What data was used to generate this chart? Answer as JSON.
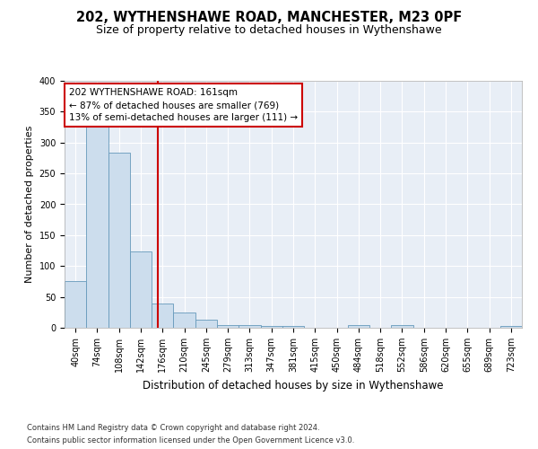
{
  "title": "202, WYTHENSHAWE ROAD, MANCHESTER, M23 0PF",
  "subtitle": "Size of property relative to detached houses in Wythenshawe",
  "xlabel": "Distribution of detached houses by size in Wythenshawe",
  "ylabel": "Number of detached properties",
  "footnote1": "Contains HM Land Registry data © Crown copyright and database right 2024.",
  "footnote2": "Contains public sector information licensed under the Open Government Licence v3.0.",
  "categories": [
    "40sqm",
    "74sqm",
    "108sqm",
    "142sqm",
    "176sqm",
    "210sqm",
    "245sqm",
    "279sqm",
    "313sqm",
    "347sqm",
    "381sqm",
    "415sqm",
    "450sqm",
    "484sqm",
    "518sqm",
    "552sqm",
    "586sqm",
    "620sqm",
    "655sqm",
    "689sqm",
    "723sqm"
  ],
  "values": [
    75,
    327,
    283,
    123,
    39,
    25,
    13,
    5,
    5,
    3,
    3,
    0,
    0,
    5,
    0,
    4,
    0,
    0,
    0,
    0,
    3
  ],
  "bar_color": "#ccdded",
  "bar_edge_color": "#6699bb",
  "vline_x": 3.78,
  "vline_color": "#cc0000",
  "annotation_line1": "202 WYTHENSHAWE ROAD: 161sqm",
  "annotation_line2": "← 87% of detached houses are smaller (769)",
  "annotation_line3": "13% of semi-detached houses are larger (111) →",
  "annotation_box_color": "#cc0000",
  "annotation_fontsize": 7.5,
  "ylim": [
    0,
    400
  ],
  "yticks": [
    0,
    50,
    100,
    150,
    200,
    250,
    300,
    350,
    400
  ],
  "background_color": "#e8eef6",
  "grid_color": "#ffffff",
  "title_fontsize": 10.5,
  "subtitle_fontsize": 9,
  "xlabel_fontsize": 8.5,
  "ylabel_fontsize": 8,
  "tick_fontsize": 7,
  "footnote_fontsize": 6
}
